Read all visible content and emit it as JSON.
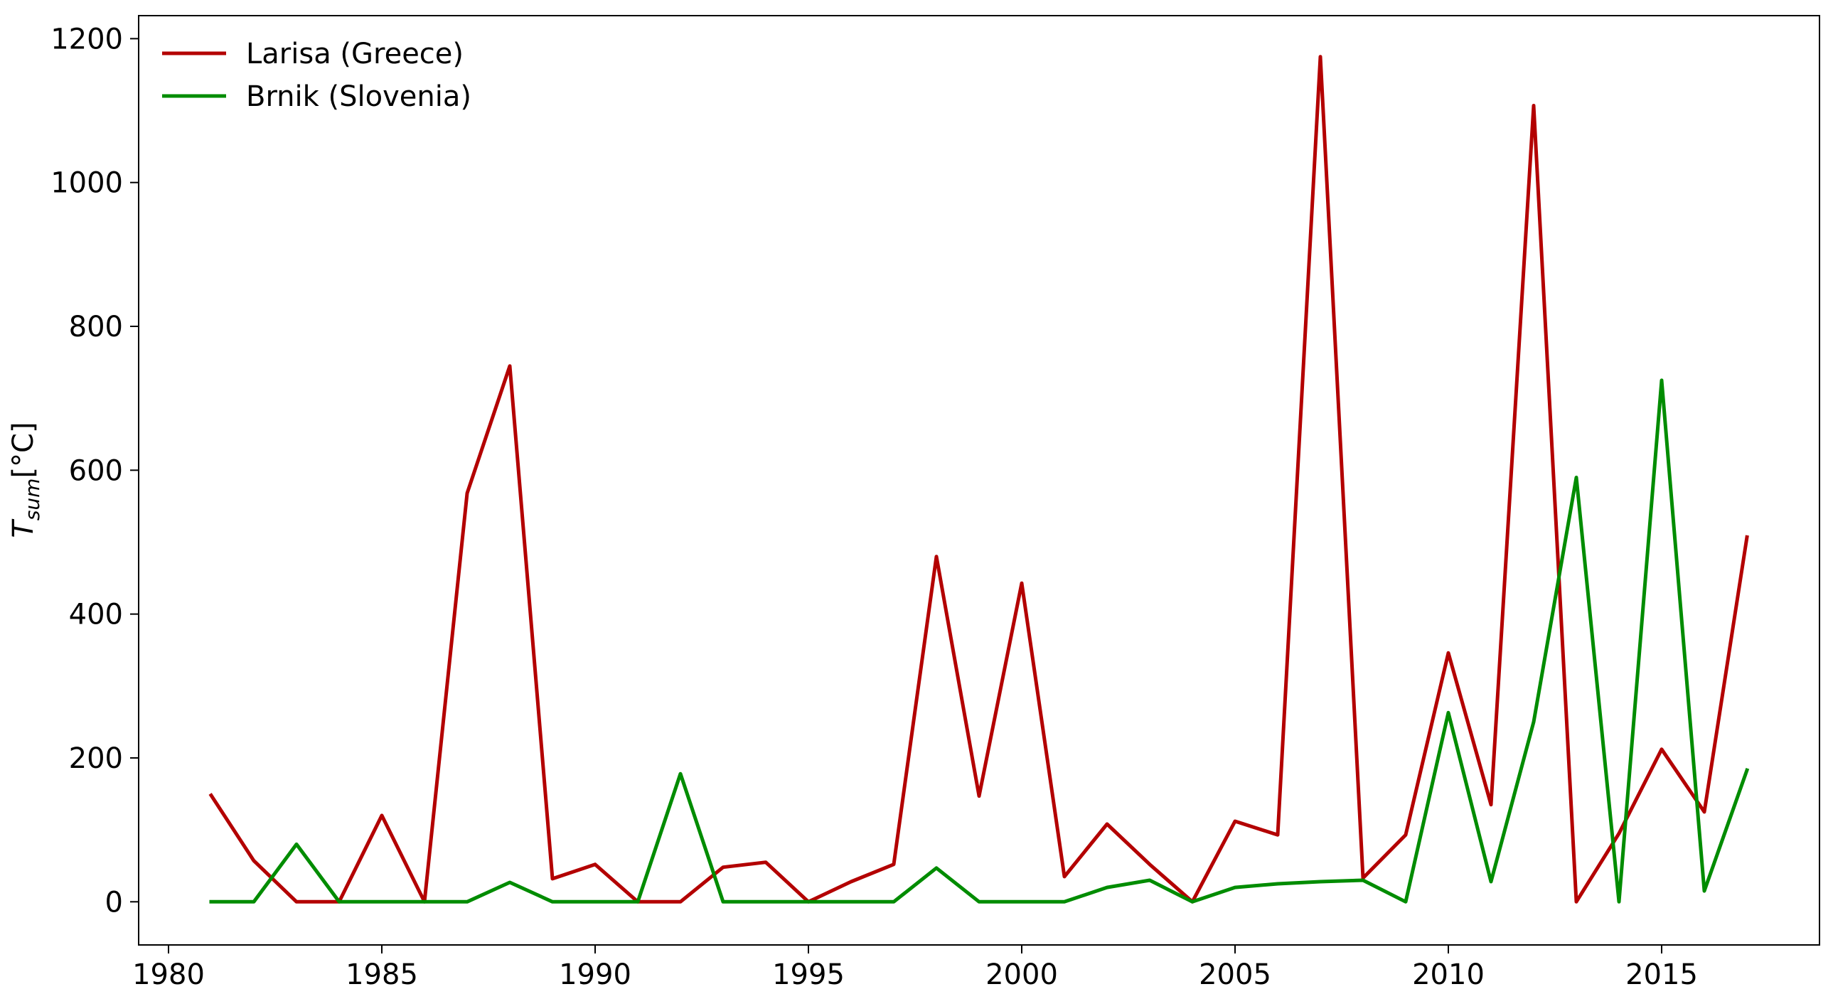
{
  "chart_data": {
    "type": "line",
    "title": "",
    "xlabel": "",
    "ylabel": {
      "main": "T",
      "sub": "sum",
      "unit": "[°C]"
    },
    "x": [
      1981,
      1982,
      1983,
      1984,
      1985,
      1986,
      1987,
      1988,
      1989,
      1990,
      1991,
      1992,
      1993,
      1994,
      1995,
      1996,
      1997,
      1998,
      1999,
      2000,
      2001,
      2002,
      2003,
      2004,
      2005,
      2006,
      2007,
      2008,
      2009,
      2010,
      2011,
      2012,
      2013,
      2014,
      2015,
      2016,
      2017
    ],
    "series": [
      {
        "name": "Larisa (Greece)",
        "color": "#b30000",
        "values": [
          148,
          57,
          0,
          0,
          120,
          0,
          568,
          745,
          32,
          52,
          0,
          0,
          48,
          55,
          0,
          28,
          52,
          480,
          147,
          443,
          35,
          108,
          52,
          0,
          112,
          93,
          1175,
          33,
          93,
          346,
          135,
          1107,
          0,
          95,
          212,
          125,
          507
        ]
      },
      {
        "name": "Brnik (Slovenia)",
        "color": "#008c00",
        "values": [
          0,
          0,
          80,
          0,
          0,
          0,
          0,
          27,
          0,
          0,
          0,
          178,
          0,
          0,
          0,
          0,
          0,
          47,
          0,
          0,
          0,
          20,
          30,
          0,
          20,
          25,
          28,
          30,
          0,
          263,
          28,
          250,
          590,
          0,
          725,
          15,
          183
        ]
      }
    ],
    "xlim": [
      1979.3,
      2018.7
    ],
    "ylim": [
      -60,
      1232
    ],
    "xticks": [
      1980,
      1985,
      1990,
      1995,
      2000,
      2005,
      2010,
      2015
    ],
    "yticks": [
      0,
      200,
      400,
      600,
      800,
      1000,
      1200
    ],
    "grid": false,
    "legend_position": "top-left"
  }
}
